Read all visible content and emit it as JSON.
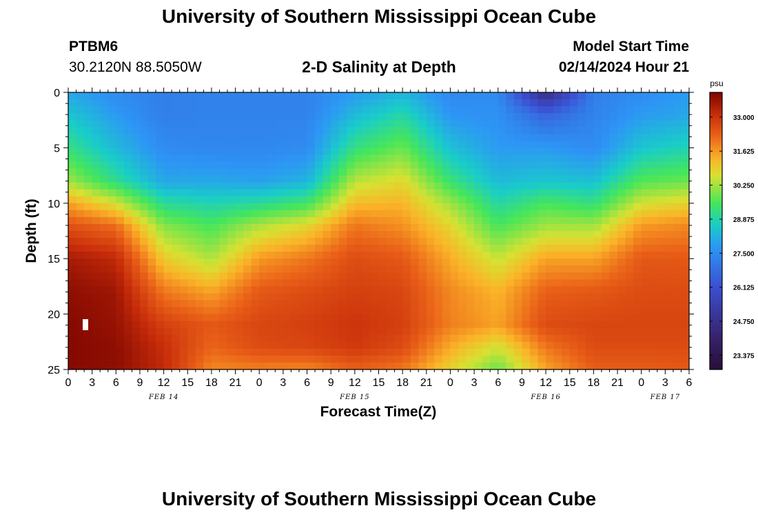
{
  "page": {
    "title_top": "University of Southern Mississippi Ocean Cube",
    "title_bottom": "University of Southern Mississippi Ocean Cube"
  },
  "header": {
    "station_id": "PTBM6",
    "station_coords": "30.2120N  88.5050W",
    "plot_title": "2-D Salinity at Depth",
    "model_start_label": "Model Start Time",
    "model_start_value": "02/14/2024 Hour 21"
  },
  "chart_data": {
    "type": "heatmap",
    "title": "2-D Salinity at Depth",
    "xlabel": "Forecast Time(Z)",
    "ylabel": "Depth (ft)",
    "x_range_hours": [
      0,
      78
    ],
    "y_range_ft": [
      0,
      25
    ],
    "y_ticks": [
      0,
      5,
      10,
      15,
      20,
      25
    ],
    "x_ticks": [
      {
        "hour": 0,
        "label": "0"
      },
      {
        "hour": 3,
        "label": "3"
      },
      {
        "hour": 6,
        "label": "6"
      },
      {
        "hour": 9,
        "label": "9"
      },
      {
        "hour": 12,
        "label": "12"
      },
      {
        "hour": 15,
        "label": "15"
      },
      {
        "hour": 18,
        "label": "18"
      },
      {
        "hour": 21,
        "label": "21"
      },
      {
        "hour": 24,
        "label": "0"
      },
      {
        "hour": 27,
        "label": "3"
      },
      {
        "hour": 30,
        "label": "6"
      },
      {
        "hour": 33,
        "label": "9"
      },
      {
        "hour": 36,
        "label": "12"
      },
      {
        "hour": 39,
        "label": "15"
      },
      {
        "hour": 42,
        "label": "18"
      },
      {
        "hour": 45,
        "label": "21"
      },
      {
        "hour": 48,
        "label": "0"
      },
      {
        "hour": 51,
        "label": "3"
      },
      {
        "hour": 54,
        "label": "6"
      },
      {
        "hour": 57,
        "label": "9"
      },
      {
        "hour": 60,
        "label": "12"
      },
      {
        "hour": 63,
        "label": "15"
      },
      {
        "hour": 66,
        "label": "18"
      },
      {
        "hour": 69,
        "label": "21"
      },
      {
        "hour": 72,
        "label": "0"
      },
      {
        "hour": 75,
        "label": "3"
      },
      {
        "hour": 78,
        "label": "6"
      }
    ],
    "date_labels": [
      {
        "hour": 12,
        "label": "FEB 14"
      },
      {
        "hour": 36,
        "label": "FEB 15"
      },
      {
        "hour": 60,
        "label": "FEB 16"
      },
      {
        "hour": 75,
        "label": "FEB 17"
      }
    ],
    "colorbar": {
      "unit": "psu",
      "min": 22.8,
      "max": 34.0,
      "ticks": [
        23.375,
        24.75,
        26.125,
        27.5,
        28.875,
        30.25,
        31.625,
        33.0
      ],
      "tick_labels": [
        "23.375",
        "24.750",
        "26.125",
        "27.500",
        "28.875",
        "30.250",
        "31.625",
        "33.000"
      ]
    },
    "grid": {
      "times_h": [
        0,
        6,
        12,
        18,
        24,
        30,
        36,
        42,
        48,
        54,
        60,
        66,
        72,
        78
      ],
      "depths_ft": [
        0,
        2,
        5,
        8,
        10,
        12,
        15,
        18,
        21,
        23,
        25
      ],
      "salinity_psu": [
        [
          28.0,
          27.5,
          27.2,
          27.3,
          27.3,
          27.3,
          27.8,
          28.2,
          27.4,
          27.5,
          24.5,
          27.2,
          27.5,
          27.8
        ],
        [
          28.5,
          27.8,
          27.2,
          27.3,
          27.3,
          27.3,
          28.3,
          28.9,
          27.7,
          27.6,
          26.6,
          27.3,
          27.8,
          28.0
        ],
        [
          29.2,
          28.3,
          27.5,
          27.4,
          27.4,
          27.5,
          29.2,
          29.8,
          28.4,
          27.8,
          27.8,
          27.5,
          28.5,
          28.8
        ],
        [
          30.2,
          29.1,
          28.0,
          28.0,
          27.9,
          28.2,
          30.4,
          30.8,
          29.3,
          28.3,
          28.5,
          28.4,
          29.6,
          29.8
        ],
        [
          31.5,
          30.6,
          29.0,
          28.8,
          29.0,
          29.4,
          31.2,
          31.3,
          30.2,
          28.9,
          29.5,
          29.2,
          30.6,
          30.9
        ],
        [
          32.5,
          32.1,
          30.0,
          29.5,
          30.3,
          30.8,
          32.0,
          31.7,
          30.8,
          29.5,
          30.2,
          30.2,
          31.6,
          31.8
        ],
        [
          33.5,
          33.2,
          31.0,
          30.3,
          31.6,
          32.0,
          32.6,
          32.4,
          31.4,
          30.5,
          31.5,
          31.5,
          32.4,
          32.4
        ],
        [
          33.8,
          33.6,
          32.0,
          31.5,
          32.4,
          32.6,
          32.8,
          32.7,
          31.8,
          31.3,
          32.3,
          32.4,
          32.6,
          32.6
        ],
        [
          33.9,
          33.7,
          32.8,
          32.4,
          32.7,
          32.8,
          33.0,
          32.8,
          31.9,
          31.5,
          32.6,
          32.7,
          32.7,
          32.7
        ],
        [
          33.9,
          33.8,
          33.1,
          32.2,
          32.6,
          32.7,
          32.9,
          32.6,
          31.4,
          30.6,
          32.0,
          32.6,
          32.6,
          32.6
        ],
        [
          33.9,
          33.8,
          33.2,
          31.8,
          31.9,
          31.8,
          32.3,
          32.0,
          30.9,
          29.8,
          31.5,
          32.3,
          32.3,
          32.4
        ]
      ]
    }
  }
}
